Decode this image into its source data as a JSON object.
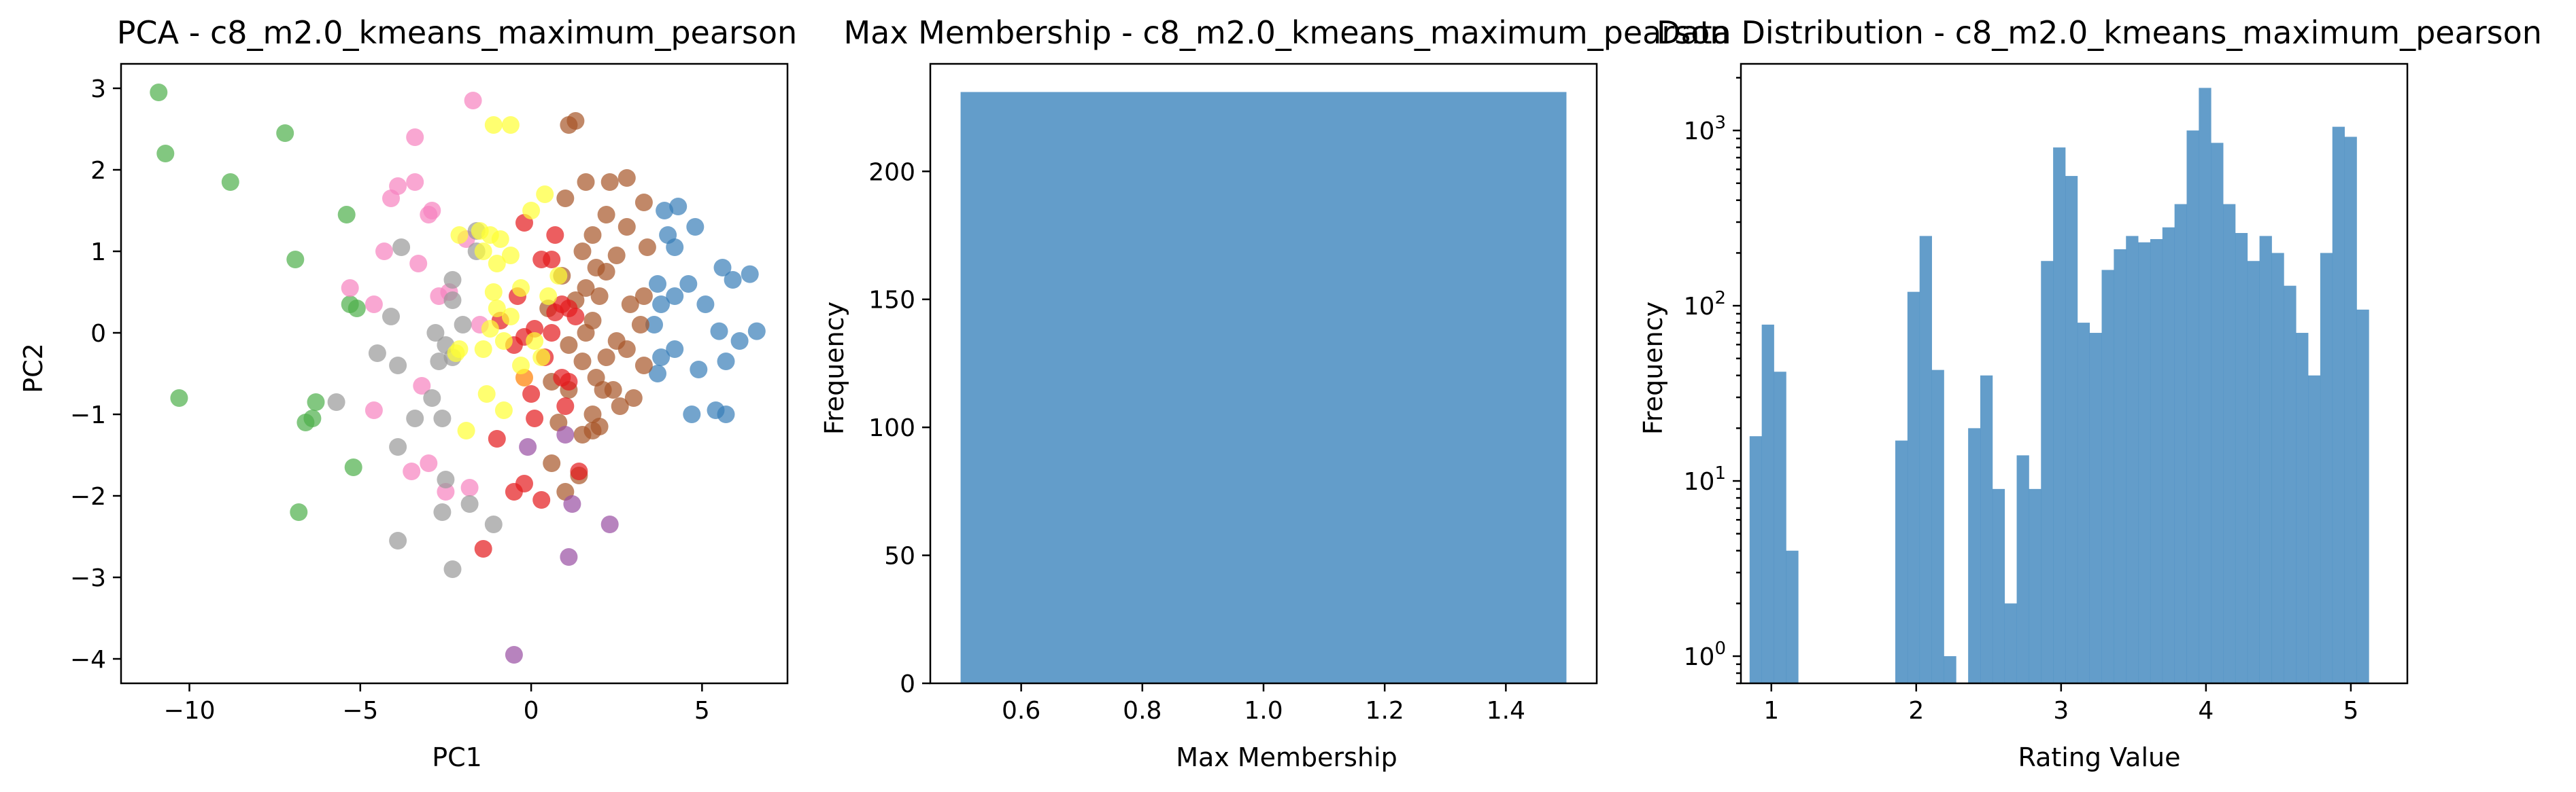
{
  "chart_data": [
    {
      "type": "scatter",
      "title": "PCA - c8_m2.0_kmeans_maximum_pearson",
      "xlabel": "PC1",
      "ylabel": "PC2",
      "xlim": [
        -12,
        7.5
      ],
      "ylim": [
        -4.3,
        3.3
      ],
      "xticks": [
        -10,
        -5,
        0,
        5
      ],
      "yticks": [
        -4,
        -3,
        -2,
        -1,
        0,
        1,
        2,
        3
      ],
      "grid": false,
      "legend": false,
      "series": [
        {
          "color": "#4daf4a",
          "points": [
            [
              -10.9,
              2.95
            ],
            [
              -10.7,
              2.2
            ],
            [
              -8.8,
              1.85
            ],
            [
              -7.2,
              2.45
            ],
            [
              -5.4,
              1.45
            ],
            [
              -6.9,
              0.9
            ],
            [
              -5.3,
              0.35
            ],
            [
              -5.1,
              0.3
            ],
            [
              -10.3,
              -0.8
            ],
            [
              -6.3,
              -0.85
            ],
            [
              -6.4,
              -1.05
            ],
            [
              -6.6,
              -1.1
            ],
            [
              -5.2,
              -1.65
            ],
            [
              -6.8,
              -2.2
            ]
          ]
        },
        {
          "color": "#377eb8",
          "points": [
            [
              3.9,
              1.5
            ],
            [
              4.3,
              1.55
            ],
            [
              4.8,
              1.3
            ],
            [
              4.0,
              1.2
            ],
            [
              4.2,
              1.05
            ],
            [
              5.6,
              0.8
            ],
            [
              6.4,
              0.72
            ],
            [
              5.9,
              0.65
            ],
            [
              3.7,
              0.6
            ],
            [
              4.6,
              0.6
            ],
            [
              4.2,
              0.45
            ],
            [
              3.8,
              0.35
            ],
            [
              5.1,
              0.35
            ],
            [
              3.6,
              0.1
            ],
            [
              5.5,
              0.02
            ],
            [
              6.6,
              0.02
            ],
            [
              6.1,
              -0.1
            ],
            [
              4.2,
              -0.2
            ],
            [
              3.8,
              -0.3
            ],
            [
              5.7,
              -0.35
            ],
            [
              4.9,
              -0.45
            ],
            [
              3.7,
              -0.5
            ],
            [
              5.4,
              -0.95
            ],
            [
              5.7,
              -1.0
            ],
            [
              4.7,
              -1.0
            ]
          ]
        },
        {
          "color": "#a65628",
          "points": [
            [
              1.3,
              2.6
            ],
            [
              1.1,
              2.55
            ],
            [
              2.8,
              1.9
            ],
            [
              2.3,
              1.85
            ],
            [
              1.6,
              1.85
            ],
            [
              1.0,
              1.65
            ],
            [
              3.3,
              1.6
            ],
            [
              2.2,
              1.45
            ],
            [
              2.8,
              1.3
            ],
            [
              1.8,
              1.2
            ],
            [
              3.4,
              1.05
            ],
            [
              1.5,
              1.0
            ],
            [
              2.5,
              0.95
            ],
            [
              1.9,
              0.8
            ],
            [
              2.2,
              0.75
            ],
            [
              0.9,
              0.7
            ],
            [
              1.6,
              0.55
            ],
            [
              3.3,
              0.45
            ],
            [
              2.0,
              0.45
            ],
            [
              1.3,
              0.4
            ],
            [
              2.9,
              0.35
            ],
            [
              0.5,
              0.3
            ],
            [
              1.8,
              0.15
            ],
            [
              3.2,
              0.1
            ],
            [
              1.6,
              0.0
            ],
            [
              2.5,
              -0.1
            ],
            [
              1.1,
              -0.15
            ],
            [
              2.8,
              -0.2
            ],
            [
              2.2,
              -0.3
            ],
            [
              1.5,
              -0.35
            ],
            [
              3.3,
              -0.4
            ],
            [
              1.9,
              -0.55
            ],
            [
              0.6,
              -0.6
            ],
            [
              1.1,
              -0.7
            ],
            [
              2.4,
              -0.7
            ],
            [
              2.1,
              -0.7
            ],
            [
              3.0,
              -0.8
            ],
            [
              2.6,
              -0.9
            ],
            [
              1.8,
              -1.0
            ],
            [
              0.8,
              -1.1
            ],
            [
              2.0,
              -1.15
            ],
            [
              1.5,
              -1.25
            ],
            [
              1.8,
              -1.2
            ],
            [
              0.6,
              -1.6
            ],
            [
              1.4,
              -1.75
            ],
            [
              1.0,
              -1.95
            ]
          ]
        },
        {
          "color": "#e41a1c",
          "points": [
            [
              -0.2,
              1.35
            ],
            [
              0.7,
              1.2
            ],
            [
              0.3,
              0.9
            ],
            [
              0.6,
              0.9
            ],
            [
              -0.4,
              0.45
            ],
            [
              0.9,
              0.35
            ],
            [
              1.1,
              0.3
            ],
            [
              0.7,
              0.25
            ],
            [
              1.3,
              0.2
            ],
            [
              -0.9,
              0.15
            ],
            [
              0.1,
              0.05
            ],
            [
              0.6,
              0.0
            ],
            [
              -0.2,
              -0.05
            ],
            [
              -0.5,
              -0.15
            ],
            [
              0.4,
              -0.3
            ],
            [
              0.9,
              -0.55
            ],
            [
              1.1,
              -0.6
            ],
            [
              0.0,
              -0.75
            ],
            [
              1.0,
              -0.9
            ],
            [
              0.1,
              -1.05
            ],
            [
              -1.0,
              -1.3
            ],
            [
              1.4,
              -1.7
            ],
            [
              -0.2,
              -1.85
            ],
            [
              -0.5,
              -1.95
            ],
            [
              0.3,
              -2.05
            ],
            [
              -1.4,
              -2.65
            ]
          ]
        },
        {
          "color": "#984ea3",
          "points": [
            [
              -0.1,
              -1.4
            ],
            [
              1.0,
              -1.25
            ],
            [
              1.2,
              -2.1
            ],
            [
              2.3,
              -2.35
            ],
            [
              1.1,
              -2.75
            ],
            [
              -0.5,
              -3.95
            ]
          ]
        },
        {
          "color": "#ff7f00",
          "points": [
            [
              -0.2,
              -0.55
            ]
          ]
        },
        {
          "color": "#f781bf",
          "points": [
            [
              -1.7,
              2.85
            ],
            [
              -3.4,
              2.4
            ],
            [
              -3.9,
              1.8
            ],
            [
              -3.4,
              1.85
            ],
            [
              -4.1,
              1.65
            ],
            [
              -3.0,
              1.45
            ],
            [
              -2.9,
              1.5
            ],
            [
              -4.3,
              1.0
            ],
            [
              -1.9,
              1.15
            ],
            [
              -3.3,
              0.85
            ],
            [
              -5.3,
              0.55
            ],
            [
              -2.4,
              0.5
            ],
            [
              -2.7,
              0.45
            ],
            [
              -4.6,
              0.35
            ],
            [
              -1.5,
              0.1
            ],
            [
              -3.2,
              -0.65
            ],
            [
              -4.6,
              -0.95
            ],
            [
              -3.5,
              -1.7
            ],
            [
              -3.0,
              -1.6
            ],
            [
              -1.8,
              -1.9
            ],
            [
              -2.5,
              -1.95
            ]
          ]
        },
        {
          "color": "#999999",
          "points": [
            [
              -1.6,
              1.25
            ],
            [
              -1.6,
              1.0
            ],
            [
              -3.8,
              1.05
            ],
            [
              -2.3,
              0.65
            ],
            [
              -2.3,
              0.4
            ],
            [
              -4.1,
              0.2
            ],
            [
              -2.0,
              0.1
            ],
            [
              -2.8,
              0.0
            ],
            [
              -2.5,
              -0.15
            ],
            [
              -4.5,
              -0.25
            ],
            [
              -3.9,
              -0.4
            ],
            [
              -2.7,
              -0.35
            ],
            [
              -2.3,
              -0.3
            ],
            [
              -2.9,
              -0.8
            ],
            [
              -5.7,
              -0.85
            ],
            [
              -3.4,
              -1.05
            ],
            [
              -2.6,
              -1.05
            ],
            [
              -3.9,
              -1.4
            ],
            [
              -2.5,
              -1.8
            ],
            [
              -1.8,
              -2.1
            ],
            [
              -2.6,
              -2.2
            ],
            [
              -1.1,
              -2.35
            ],
            [
              -3.9,
              -2.55
            ],
            [
              -2.3,
              -2.9
            ]
          ]
        },
        {
          "color": "#ffff33",
          "points": [
            [
              -1.1,
              2.55
            ],
            [
              -0.6,
              2.55
            ],
            [
              -1.5,
              1.25
            ],
            [
              -1.2,
              1.2
            ],
            [
              -0.9,
              1.15
            ],
            [
              -1.4,
              1.0
            ],
            [
              0.4,
              1.7
            ],
            [
              0.0,
              1.5
            ],
            [
              -2.1,
              1.2
            ],
            [
              -0.6,
              0.95
            ],
            [
              -1.0,
              0.85
            ],
            [
              -0.3,
              0.55
            ],
            [
              -1.1,
              0.5
            ],
            [
              -1.0,
              0.3
            ],
            [
              -0.6,
              0.2
            ],
            [
              -1.2,
              0.05
            ],
            [
              -0.8,
              -0.1
            ],
            [
              -1.4,
              -0.2
            ],
            [
              0.1,
              -0.1
            ],
            [
              0.5,
              0.45
            ],
            [
              0.3,
              -0.3
            ],
            [
              -2.2,
              -0.25
            ],
            [
              -1.3,
              -0.75
            ],
            [
              -0.8,
              -0.95
            ],
            [
              -1.9,
              -1.2
            ],
            [
              -0.3,
              -0.4
            ],
            [
              -2.1,
              -0.2
            ],
            [
              0.8,
              0.7
            ]
          ]
        }
      ]
    },
    {
      "type": "bar",
      "title": "Max Membership - c8_m2.0_kmeans_maximum_pearson",
      "xlabel": "Max Membership",
      "ylabel": "Frequency",
      "xlim": [
        0.45,
        1.55
      ],
      "ylim": [
        0,
        242
      ],
      "xticks": [
        "0.6",
        "0.8",
        "1.0",
        "1.2",
        "1.4"
      ],
      "yticks": [
        0,
        50,
        100,
        150,
        200
      ],
      "bins": [
        [
          0.5,
          1.5
        ]
      ],
      "values": [
        231
      ],
      "color": "#4c8fc2",
      "grid": false,
      "legend": false
    },
    {
      "type": "bar",
      "title": "Data Distribution - c8_m2.0_kmeans_maximum_pearson",
      "xlabel": "Rating Value",
      "ylabel": "Frequency",
      "yscale": "log",
      "xlim": [
        0.79,
        5.39
      ],
      "ylim": [
        0.7,
        2400
      ],
      "xticks": [
        1,
        2,
        3,
        4,
        5
      ],
      "yticks": [
        "10^0",
        "10^1",
        "10^2",
        "10^3"
      ],
      "bin_start": 0.85,
      "bin_width": 0.0838,
      "values": [
        18,
        78,
        42,
        4,
        0,
        0,
        0,
        0,
        0,
        0,
        0,
        0,
        17,
        120,
        250,
        43,
        1,
        0,
        20,
        40,
        9,
        2,
        14,
        9,
        180,
        800,
        550,
        80,
        70,
        160,
        210,
        250,
        230,
        240,
        280,
        380,
        1000,
        1750,
        850,
        380,
        260,
        180,
        250,
        200,
        130,
        70,
        40,
        200,
        1050,
        920,
        95
      ],
      "color": "#4c8fc2",
      "grid": false,
      "legend": false
    }
  ]
}
